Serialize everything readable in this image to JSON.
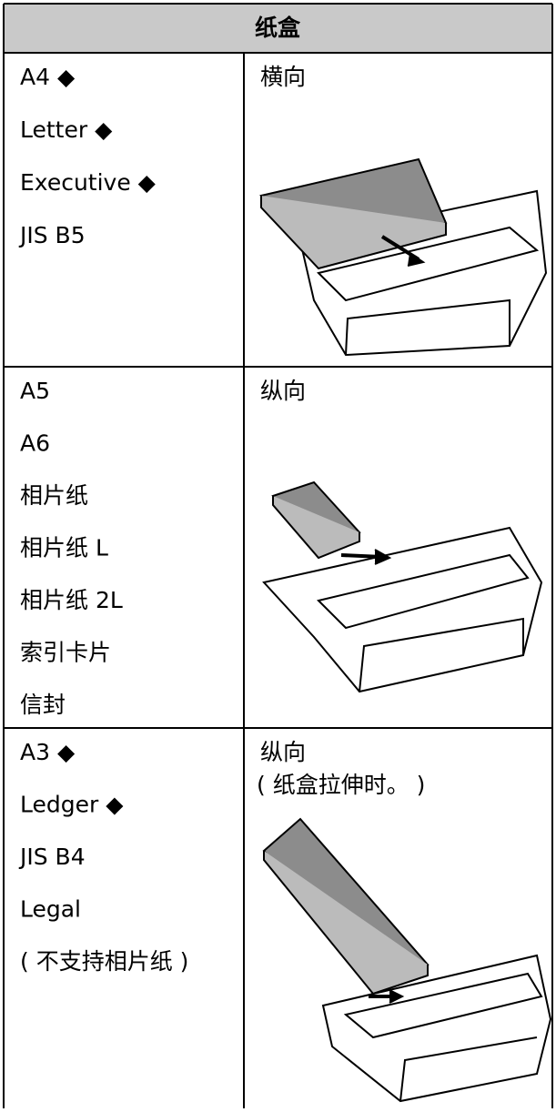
{
  "table": {
    "header": {
      "title": "纸盒"
    },
    "rows": [
      {
        "sizes": [
          "A4 ◆",
          "Letter ◆",
          "Executive ◆",
          "JIS B5"
        ],
        "orientation": "横向"
      },
      {
        "sizes": [
          "A5",
          "A6",
          "相片纸",
          "相片纸 L",
          "相片纸 2L",
          "索引卡片",
          "信封"
        ],
        "orientation": "纵向"
      },
      {
        "sizes": [
          "A3 ◆",
          "Ledger ◆",
          "JIS B4",
          "Legal",
          "( 不支持相片纸 )"
        ],
        "orientation": "纵向",
        "note": "( 纸盒拉伸时。 )"
      }
    ]
  }
}
